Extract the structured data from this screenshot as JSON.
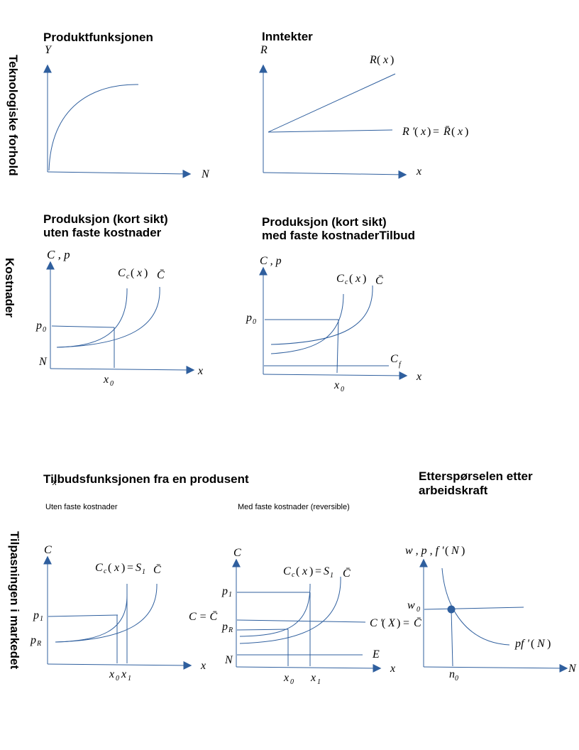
{
  "row_labels": {
    "row1": "Teknologiske forhold",
    "row2": "Kostnader",
    "row3": "Tilpasningen i markedet"
  },
  "titles": {
    "panel1": "Produktfunksjonen",
    "panel2": "Inntekter",
    "panel3_line1": "Produksjon (kort sikt)",
    "panel3_line2": "uten faste kostnader",
    "panel4_line1": "Produksjon (kort sikt)",
    "panel4_line2": "med faste kostnaderTilbud",
    "row3_main": "Tilbudsfunksjonen fra en produsent",
    "row3_main_overlap": "x",
    "panel7_line1": "Etterspørselen etter",
    "panel7_line2": "arbeidskraft"
  },
  "subtitles": {
    "panel5": "Uten faste kostnader",
    "panel6": "Med faste kostnader (reversible)"
  },
  "labels": {
    "Y": "Y",
    "N": "N",
    "R": "R",
    "x": "x",
    "R_open": "R",
    "paren_l": "(",
    "paren_r": ")",
    "Rprime": "R '",
    "eq": "=",
    "Rbar": "R̄",
    "Cp": "C , p",
    "Cc": "C",
    "c_sub": "c",
    "Cbar": "C̄",
    "p": "p",
    "sub0": "0",
    "sub1": "1",
    "subR": "R",
    "subf": "f",
    "x0": "x",
    "x1": "x",
    "C": "C",
    "S": "S",
    "C_eq_Cbar_left": "C = C̄",
    "Cprime_X": "C '",
    "X": "X",
    "E": "E",
    "w_p_fprime": "w , p , f '",
    "w": "w",
    "n": "n",
    "pfprime": "pf '"
  },
  "colors": {
    "line": "#2f5f9e",
    "arrow": "#2f5f9e",
    "dot": "#2f5f9e",
    "text": "#000000"
  }
}
